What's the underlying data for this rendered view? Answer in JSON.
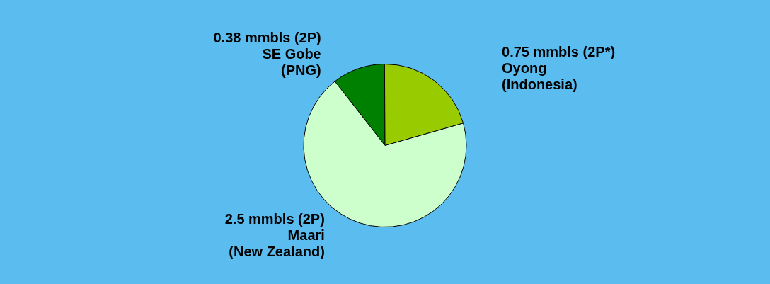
{
  "chart_data": {
    "type": "pie",
    "categories": [
      "0.38 mmbls (2P)\nSE Gobe\n(PNG)",
      "0.75 mmbls (2P*)\nOyong\n(Indonesia)",
      "2.5 mmbls (2P)\nMaari\n(New Zealand)"
    ],
    "values": [
      0.38,
      0.75,
      2.5
    ],
    "colors": [
      "#008000",
      "#99cc00",
      "#ccffcc"
    ],
    "legend": false
  }
}
